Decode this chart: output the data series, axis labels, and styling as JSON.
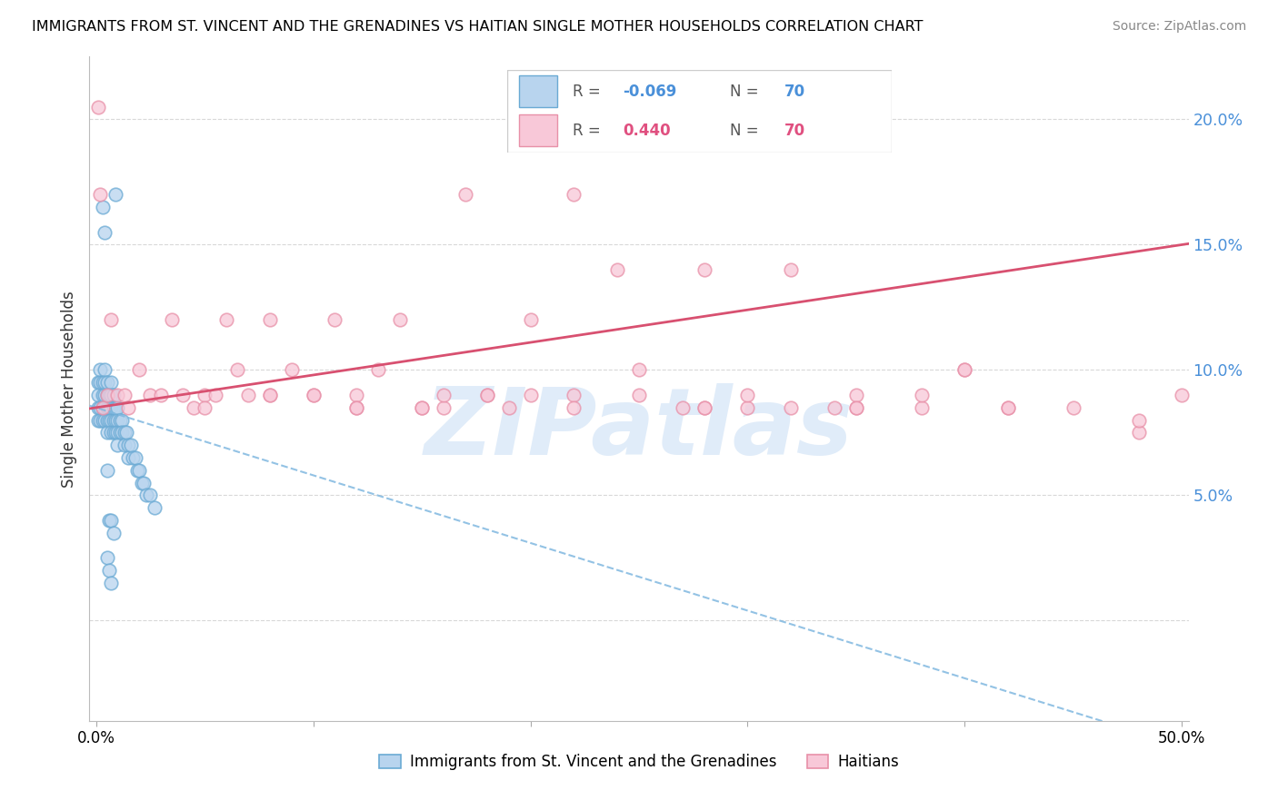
{
  "title": "IMMIGRANTS FROM ST. VINCENT AND THE GRENADINES VS HAITIAN SINGLE MOTHER HOUSEHOLDS CORRELATION CHART",
  "source": "Source: ZipAtlas.com",
  "ylabel": "Single Mother Households",
  "xlabel_blue": "Immigrants from St. Vincent and the Grenadines",
  "xlabel_pink": "Haitians",
  "R_blue": "-0.069",
  "R_pink": "0.440",
  "N_blue": "70",
  "N_pink": "70",
  "xlim": [
    -0.003,
    0.503
  ],
  "ylim": [
    -0.04,
    0.225
  ],
  "ytick_vals": [
    0.0,
    0.05,
    0.1,
    0.15,
    0.2
  ],
  "ytick_labels_right": [
    "",
    "5.0%",
    "10.0%",
    "15.0%",
    "20.0%"
  ],
  "xtick_vals": [
    0.0,
    0.1,
    0.2,
    0.3,
    0.4,
    0.5
  ],
  "xtick_labels": [
    "0.0%",
    "",
    "",
    "",
    "",
    "50.0%"
  ],
  "blue_face": "#b8d4ee",
  "blue_edge": "#6aaad4",
  "pink_face": "#f8c8d8",
  "pink_edge": "#e890a8",
  "pink_line_color": "#d85070",
  "blue_line_color": "#80b8e0",
  "watermark_color": "#cce0f5",
  "watermark": "ZIPatlas",
  "grid_color": "#d8d8d8",
  "blue_x": [
    0.001,
    0.001,
    0.001,
    0.001,
    0.002,
    0.002,
    0.002,
    0.002,
    0.003,
    0.003,
    0.003,
    0.003,
    0.004,
    0.004,
    0.004,
    0.004,
    0.004,
    0.005,
    0.005,
    0.005,
    0.005,
    0.005,
    0.006,
    0.006,
    0.006,
    0.007,
    0.007,
    0.007,
    0.007,
    0.007,
    0.008,
    0.008,
    0.008,
    0.008,
    0.009,
    0.009,
    0.009,
    0.01,
    0.01,
    0.01,
    0.01,
    0.011,
    0.011,
    0.012,
    0.012,
    0.013,
    0.013,
    0.014,
    0.015,
    0.015,
    0.016,
    0.017,
    0.018,
    0.019,
    0.02,
    0.021,
    0.022,
    0.023,
    0.025,
    0.027,
    0.009,
    0.003,
    0.004,
    0.005,
    0.006,
    0.007,
    0.008,
    0.005,
    0.006,
    0.007
  ],
  "blue_y": [
    0.095,
    0.09,
    0.085,
    0.08,
    0.1,
    0.095,
    0.085,
    0.08,
    0.095,
    0.09,
    0.085,
    0.08,
    0.1,
    0.095,
    0.09,
    0.085,
    0.08,
    0.095,
    0.09,
    0.085,
    0.08,
    0.075,
    0.09,
    0.085,
    0.08,
    0.095,
    0.09,
    0.085,
    0.08,
    0.075,
    0.09,
    0.085,
    0.08,
    0.075,
    0.085,
    0.08,
    0.075,
    0.085,
    0.08,
    0.075,
    0.07,
    0.08,
    0.075,
    0.08,
    0.075,
    0.075,
    0.07,
    0.075,
    0.07,
    0.065,
    0.07,
    0.065,
    0.065,
    0.06,
    0.06,
    0.055,
    0.055,
    0.05,
    0.05,
    0.045,
    0.17,
    0.165,
    0.155,
    0.06,
    0.04,
    0.04,
    0.035,
    0.025,
    0.02,
    0.015
  ],
  "pink_x": [
    0.001,
    0.003,
    0.005,
    0.007,
    0.01,
    0.013,
    0.015,
    0.02,
    0.025,
    0.03,
    0.035,
    0.04,
    0.045,
    0.05,
    0.055,
    0.06,
    0.065,
    0.07,
    0.08,
    0.09,
    0.1,
    0.11,
    0.12,
    0.13,
    0.14,
    0.15,
    0.16,
    0.17,
    0.18,
    0.19,
    0.2,
    0.22,
    0.24,
    0.25,
    0.27,
    0.28,
    0.3,
    0.32,
    0.34,
    0.35,
    0.38,
    0.4,
    0.42,
    0.45,
    0.48,
    0.5,
    0.08,
    0.12,
    0.18,
    0.22,
    0.3,
    0.1,
    0.15,
    0.2,
    0.25,
    0.35,
    0.4,
    0.28,
    0.32,
    0.38,
    0.05,
    0.08,
    0.12,
    0.16,
    0.22,
    0.28,
    0.35,
    0.42,
    0.48,
    0.002
  ],
  "pink_y": [
    0.205,
    0.085,
    0.09,
    0.12,
    0.09,
    0.09,
    0.085,
    0.1,
    0.09,
    0.09,
    0.12,
    0.09,
    0.085,
    0.09,
    0.09,
    0.12,
    0.1,
    0.09,
    0.12,
    0.1,
    0.09,
    0.12,
    0.09,
    0.1,
    0.12,
    0.085,
    0.085,
    0.17,
    0.09,
    0.085,
    0.09,
    0.17,
    0.14,
    0.1,
    0.085,
    0.14,
    0.085,
    0.14,
    0.085,
    0.085,
    0.085,
    0.1,
    0.085,
    0.085,
    0.075,
    0.09,
    0.09,
    0.085,
    0.09,
    0.09,
    0.09,
    0.09,
    0.085,
    0.12,
    0.09,
    0.09,
    0.1,
    0.085,
    0.085,
    0.09,
    0.085,
    0.09,
    0.085,
    0.09,
    0.085,
    0.085,
    0.085,
    0.085,
    0.08,
    0.17
  ]
}
